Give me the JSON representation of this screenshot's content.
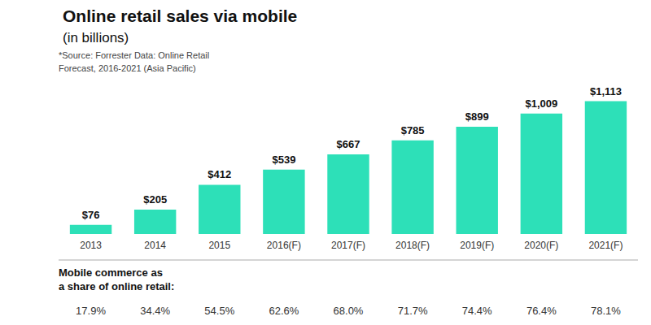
{
  "chart_data": {
    "type": "bar",
    "title": "Online retail sales via mobile",
    "subtitle": "(in billions)",
    "annotations": [
      "*Source: Forrester Data: Online Retail\nForecast, 2016-2021 (Asia Pacific)",
      "Mobile commerce as\na share of online retail:"
    ],
    "categories": [
      "2013",
      "2014",
      "2015",
      "2016(F)",
      "2017(F)",
      "2018(F)",
      "2019(F)",
      "2020(F)",
      "2021(F)"
    ],
    "values": [
      76,
      205,
      412,
      539,
      667,
      785,
      899,
      1009,
      1113
    ],
    "value_labels": [
      "$76",
      "$205",
      "$412",
      "$539",
      "$667",
      "$785",
      "$899",
      "$1,009",
      "$1,113"
    ],
    "data_labels": true,
    "color": "#2de0b8",
    "ylim": [
      0,
      1280
    ],
    "tick_labels": "x",
    "grid": false,
    "footer_values": [
      "17.9%",
      "34.4%",
      "54.5%",
      "62.6%",
      "68.0%",
      "71.7%",
      "74.4%",
      "76.4%",
      "78.1%"
    ]
  }
}
